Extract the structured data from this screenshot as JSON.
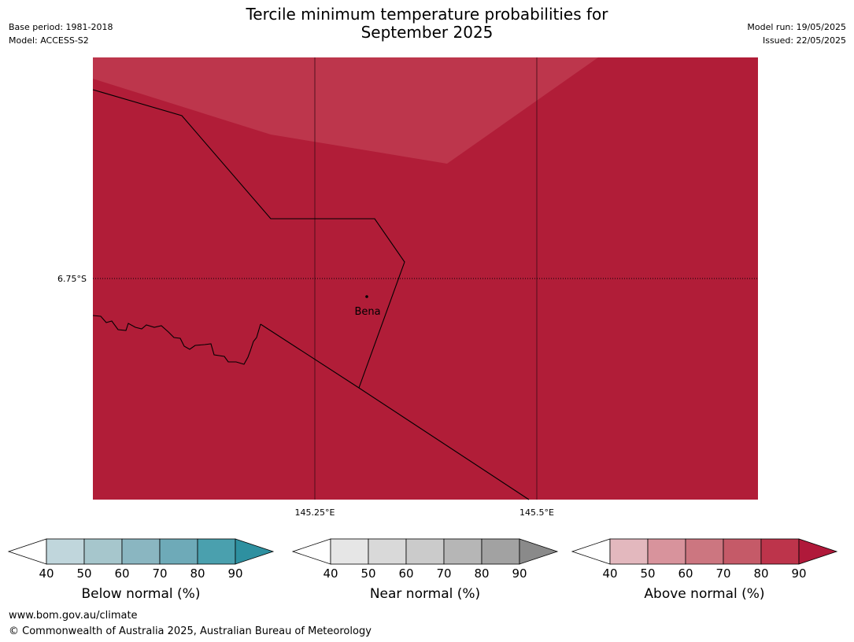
{
  "header": {
    "title_line1": "Tercile minimum temperature probabilities for",
    "title_line2": "September 2025",
    "base_period": "Base period: 1981-2018",
    "model": "Model: ACCESS-S2",
    "model_run": "Model run: 19/05/2025",
    "issued": "Issued: 22/05/2025"
  },
  "map": {
    "lat_label": "6.75°S",
    "lon_labels": [
      "145.25°E",
      "145.5°E"
    ],
    "town_label": "Bena",
    "colors": {
      "fill_main": "#b11d38",
      "fill_light": "#bd364c"
    }
  },
  "colorbars": [
    {
      "title": "Below normal (%)",
      "ticks": [
        "40",
        "50",
        "60",
        "70",
        "80",
        "90"
      ],
      "colors": [
        "#c0d6dc",
        "#a6c6cc",
        "#8ab6c1",
        "#6eaab8",
        "#4aa0ae",
        "#2e90a0"
      ]
    },
    {
      "title": "Near normal (%)",
      "ticks": [
        "40",
        "50",
        "60",
        "70",
        "80",
        "90"
      ],
      "colors": [
        "#e6e6e6",
        "#d9d9d9",
        "#cbcbcb",
        "#b6b6b6",
        "#a2a2a2",
        "#8a8a8a"
      ]
    },
    {
      "title": "Above normal (%)",
      "ticks": [
        "40",
        "50",
        "60",
        "70",
        "80",
        "90"
      ],
      "colors": [
        "#e3b8be",
        "#d8939c",
        "#cc7680",
        "#c55a68",
        "#bd344b",
        "#b0193a"
      ]
    }
  ],
  "footer": {
    "url": "www.bom.gov.au/climate",
    "copyright": "© Commonwealth of Australia 2025, Australian Bureau of Meteorology"
  }
}
